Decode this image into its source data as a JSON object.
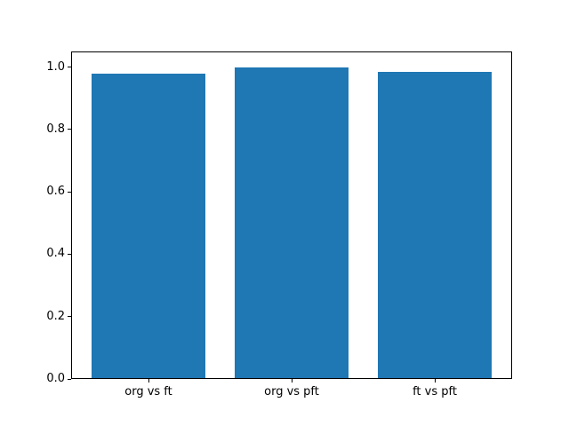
{
  "figure": {
    "background": "#ffffff",
    "plot_border_color": "#000000",
    "text_color": "#000000"
  },
  "chart_data": {
    "type": "bar",
    "categories": [
      "org vs ft",
      "org vs pft",
      "ft vs pft"
    ],
    "values": [
      0.98,
      1.0,
      0.985
    ],
    "bar_color": "#1f77b4",
    "bar_width": 0.8,
    "xlim": [
      -0.54,
      2.54
    ],
    "ylim": [
      0,
      1.05
    ],
    "ytick_values": [
      0.0,
      0.2,
      0.4,
      0.6,
      0.8,
      1.0
    ],
    "ytick_labels": [
      "0.0",
      "0.2",
      "0.4",
      "0.6",
      "0.8",
      "1.0"
    ],
    "grid": false,
    "legend": null,
    "title": ""
  }
}
